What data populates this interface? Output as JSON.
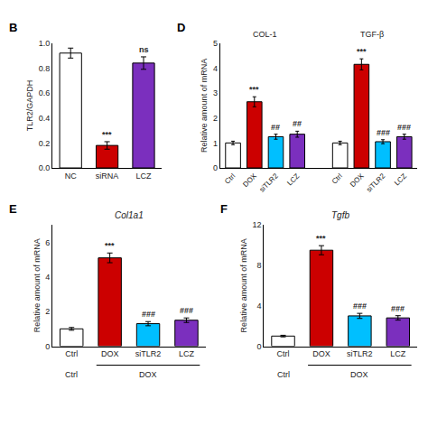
{
  "chart_data": [
    {
      "type": "bar",
      "title": "B",
      "categories": [
        "NC",
        "siRNA",
        "LCZ"
      ],
      "values": [
        0.92,
        0.18,
        0.84
      ],
      "errors": [
        0.04,
        0.03,
        0.05
      ],
      "colors": [
        "#FFFFFF",
        "#CC0000",
        "#7B2FBE"
      ],
      "ylabel": "TLR2/GAPDH",
      "ylim": [
        0.0,
        1.0
      ],
      "yticks": [
        {
          "value": 0.0,
          "label": "0.0"
        },
        0.2,
        0.4,
        0.6,
        0.8,
        {
          "value": 1.0,
          "label": "1.0"
        }
      ],
      "annotations": [
        null,
        "***",
        "ns"
      ],
      "grid": false
    },
    {
      "type": "bar",
      "title": "D",
      "categories": [
        "Ctrl",
        "DOX",
        "siTLR2",
        "LCZ"
      ],
      "series": [
        {
          "name": "COL-1",
          "values": [
            1.0,
            2.65,
            1.25,
            1.35
          ],
          "errors": [
            0.07,
            0.2,
            0.1,
            0.12
          ],
          "annotations": [
            null,
            "***",
            "##",
            "##"
          ]
        },
        {
          "name": "TGF-β",
          "values": [
            1.0,
            4.15,
            1.05,
            1.25
          ],
          "errors": [
            0.07,
            0.22,
            0.08,
            0.1
          ],
          "annotations": [
            null,
            "***",
            "###",
            "###"
          ]
        }
      ],
      "colors": [
        "#FFFFFF",
        "#CC0000",
        "#00BFFF",
        "#7B2FBE"
      ],
      "ylabel": "Relative amount of mRNA",
      "ylim": [
        0,
        5
      ],
      "yticks": [
        0,
        1,
        2,
        3,
        4,
        5
      ],
      "grid": false
    },
    {
      "type": "bar",
      "title": "E",
      "gene_title": "Col1a1",
      "categories": [
        "Ctrl",
        "DOX",
        "siTLR2",
        "LCZ"
      ],
      "x_groups": [
        {
          "label": "Ctrl",
          "categories": [
            "Ctrl"
          ]
        },
        {
          "label": "DOX",
          "categories": [
            "DOX",
            "siTLR2",
            "LCZ"
          ]
        }
      ],
      "values": [
        1.0,
        5.1,
        1.3,
        1.5
      ],
      "errors": [
        0.08,
        0.28,
        0.12,
        0.13
      ],
      "colors": [
        "#FFFFFF",
        "#CC0000",
        "#00BFFF",
        "#7B2FBE"
      ],
      "ylabel": "Relative amount of mRNA",
      "ylim": [
        0,
        7
      ],
      "yticks": [
        0,
        2,
        4,
        6
      ],
      "annotations": [
        null,
        "***",
        "###",
        "###"
      ],
      "grid": false
    },
    {
      "type": "bar",
      "title": "F",
      "gene_title": "Tgfb",
      "categories": [
        "Ctrl",
        "DOX",
        "siTLR2",
        "LCZ"
      ],
      "x_groups": [
        {
          "label": "Ctrl",
          "categories": [
            "Ctrl"
          ]
        },
        {
          "label": "DOX",
          "categories": [
            "DOX",
            "siTLR2",
            "LCZ"
          ]
        }
      ],
      "values": [
        1.0,
        9.5,
        3.0,
        2.8
      ],
      "errors": [
        0.08,
        0.45,
        0.25,
        0.22
      ],
      "colors": [
        "#FFFFFF",
        "#CC0000",
        "#00BFFF",
        "#7B2FBE"
      ],
      "ylabel": "Relative amount of mRNA",
      "ylim": [
        0,
        12
      ],
      "yticks": [
        0,
        4,
        8,
        12
      ],
      "annotations": [
        null,
        "***",
        "###",
        "###"
      ],
      "grid": false
    }
  ]
}
